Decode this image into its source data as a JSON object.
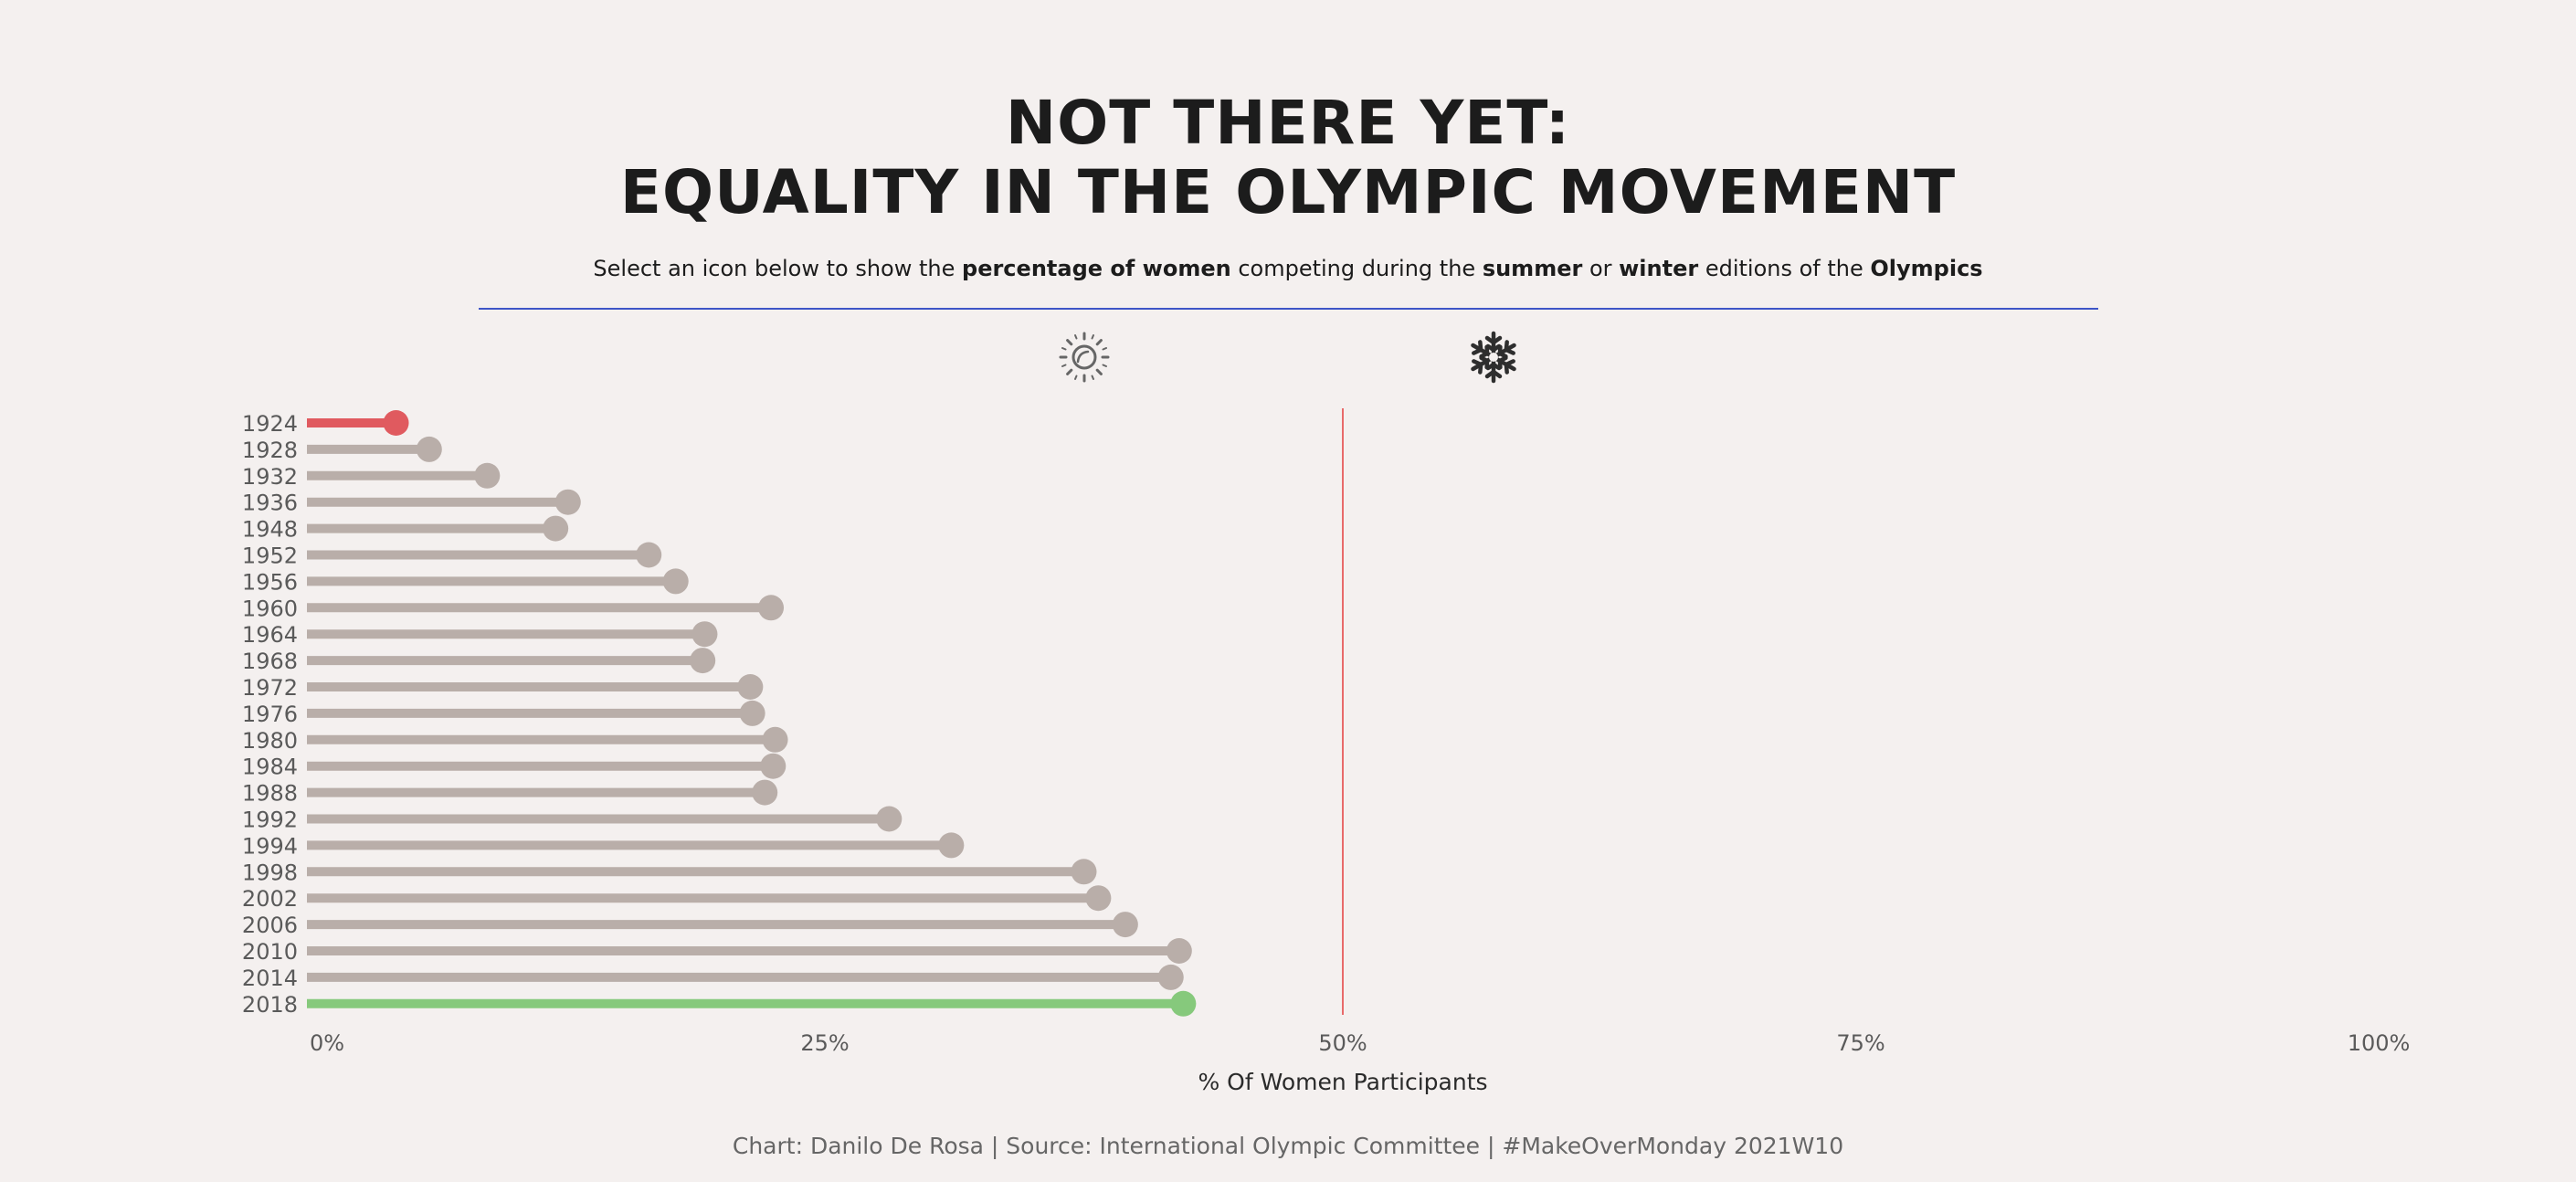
{
  "header": {
    "title_line1": "NOT THERE YET:",
    "title_line2": "EQUALITY IN THE OLYMPIC MOVEMENT",
    "subtitle": {
      "t1": "Select an icon below to show the ",
      "b1": "percentage of women",
      "t2": " competing during the ",
      "b2": "summer",
      "t3": " or ",
      "b3": "winter",
      "t4": " editions of the ",
      "b4": "Olympics"
    }
  },
  "toggles": {
    "summer_icon": "sun-icon",
    "winter_icon": "snowflake-icon"
  },
  "footer": {
    "credit": "Chart: Danilo De Rosa | Source: International Olympic Committee | #MakeOverMonday 2021W10"
  },
  "colors": {
    "background": "#f4f0ef",
    "lollipop_default": "#b9aea9",
    "lollipop_min": "#e05a5f",
    "lollipop_max": "#86c97c",
    "reference_line": "#e86a6a",
    "divider": "#3d55c7"
  },
  "chart_data": {
    "type": "lollipop",
    "season_shown": "winter",
    "categories": [
      "1924",
      "1928",
      "1932",
      "1936",
      "1948",
      "1952",
      "1956",
      "1960",
      "1964",
      "1968",
      "1972",
      "1976",
      "1980",
      "1984",
      "1988",
      "1992",
      "1994",
      "1998",
      "2002",
      "2006",
      "2010",
      "2014",
      "2018"
    ],
    "values": [
      4.3,
      5.9,
      8.7,
      12.6,
      12.0,
      16.5,
      17.8,
      22.4,
      19.2,
      19.1,
      21.4,
      21.5,
      22.6,
      22.5,
      22.1,
      28.1,
      31.1,
      37.5,
      38.2,
      39.5,
      42.1,
      41.7,
      42.3
    ],
    "highlight": {
      "min": "1924",
      "max": "2018"
    },
    "xlabel": "% Of Women Participants",
    "xlim": [
      0,
      100
    ],
    "xticks": [
      "0%",
      "25%",
      "50%",
      "75%",
      "100%"
    ],
    "xtick_values": [
      0,
      25,
      50,
      75,
      100
    ],
    "reference_line": 50
  }
}
